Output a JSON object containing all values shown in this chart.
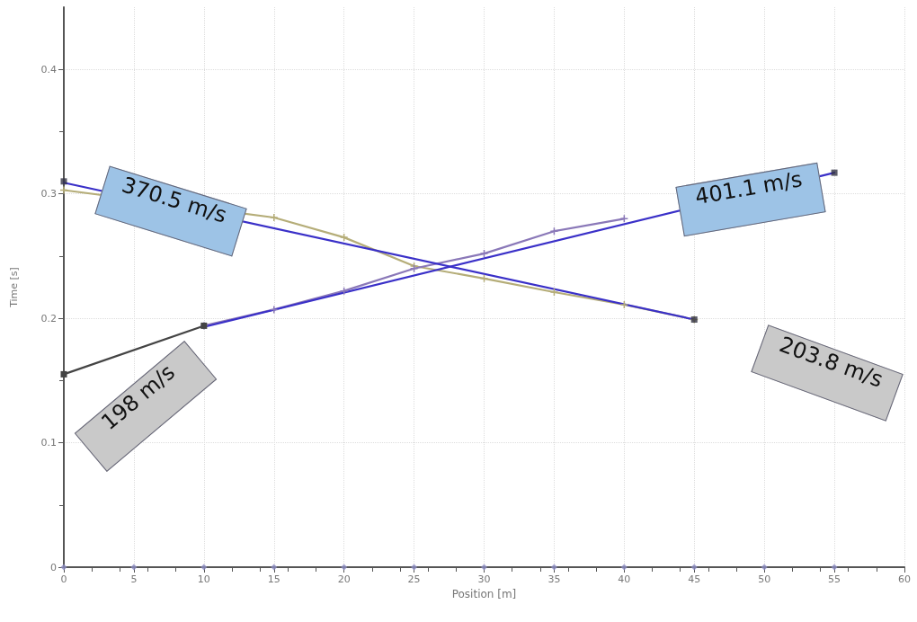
{
  "chart_data": {
    "type": "line",
    "xlabel": "Position [m]",
    "ylabel": "Time [s]",
    "xlim": [
      0,
      60
    ],
    "xticks": [
      0,
      5,
      10,
      15,
      20,
      25,
      30,
      35,
      40,
      45,
      50,
      55,
      60
    ],
    "ylim": [
      0,
      0.45
    ],
    "yticks": [
      0,
      0.1,
      0.2,
      0.3,
      0.4
    ],
    "grid": true,
    "line_style": "solid",
    "series": [
      {
        "color": "#b5ad78",
        "marker": "cross",
        "x": [
          0,
          15,
          20,
          25,
          30,
          35,
          40,
          45
        ],
        "values": [
          0.303,
          0.281,
          0.265,
          0.242,
          0.232,
          0.221,
          0.211,
          0.199
        ]
      },
      {
        "color": "#8a78b8",
        "marker": "cross",
        "x": [
          10,
          15,
          20,
          25,
          30,
          35,
          40
        ],
        "values": [
          0.194,
          0.207,
          0.222,
          0.24,
          0.252,
          0.27,
          0.28
        ]
      },
      {
        "color": "#3a30c8",
        "marker": "none",
        "x": [
          0,
          45
        ],
        "values": [
          0.309,
          0.199
        ]
      },
      {
        "color": "#3a30c8",
        "marker": "none",
        "x": [
          10,
          55
        ],
        "values": [
          0.193,
          0.317
        ]
      },
      {
        "color": "#444444",
        "marker": "square",
        "x": [
          0,
          10
        ],
        "values": [
          0.155,
          0.194
        ]
      },
      {
        "type": "scatter",
        "color": "#333344",
        "marker": "square",
        "x": [
          0,
          45,
          55
        ],
        "values": [
          0.31,
          0.199,
          0.317
        ]
      },
      {
        "type": "scatter",
        "color": "#8a8ac0",
        "marker": "diamond",
        "x": [
          0,
          5,
          10,
          15,
          20,
          25,
          30,
          35,
          40,
          45,
          50,
          55
        ],
        "values": [
          0,
          0,
          0,
          0,
          0,
          0,
          0,
          0,
          0,
          0,
          0,
          0
        ]
      }
    ],
    "annotations": [
      "370.5 m/s",
      "401.1 m/s",
      "198 m/s",
      "203.8 m/s"
    ]
  }
}
